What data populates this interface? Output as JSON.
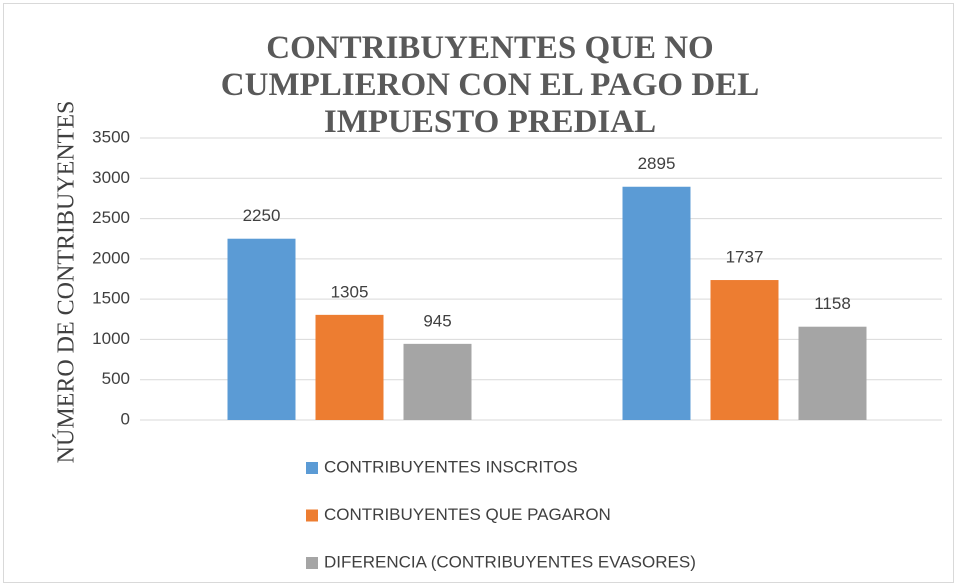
{
  "chart_data": {
    "type": "bar",
    "title": "CONTRIBUYENTES QUE NO CUMPLIERON CON EL PAGO DEL IMPUESTO PREDIAL",
    "y_label": "NÚMERO DE CONTRIBUYENTES",
    "categories": [
      null,
      null
    ],
    "series": [
      {
        "name": "CONTRIBUYENTES INSCRITOS",
        "color": "#5b9bd5",
        "values": [
          2250,
          2895
        ]
      },
      {
        "name": "CONTRIBUYENTES QUE PAGARON",
        "color": "#ed7d31",
        "values": [
          1305,
          1737
        ]
      },
      {
        "name": "DIFERENCIA (CONTRIBUYENTES EVASORES)",
        "color": "#a5a5a5",
        "values": [
          945,
          1158
        ]
      }
    ],
    "ylim": [
      0,
      3500
    ],
    "yticks": [
      0,
      500,
      1000,
      1500,
      2000,
      2500,
      3000,
      3500
    ],
    "grid": true,
    "legend": "bottom"
  }
}
